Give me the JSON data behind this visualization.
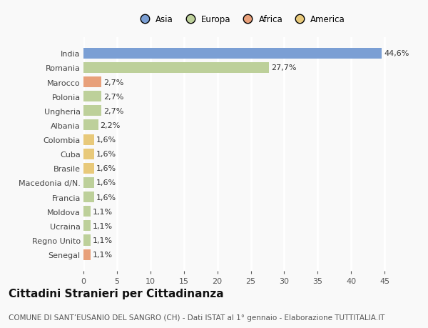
{
  "categories": [
    "India",
    "Romania",
    "Marocco",
    "Polonia",
    "Ungheria",
    "Albania",
    "Colombia",
    "Cuba",
    "Brasile",
    "Macedonia d/N.",
    "Francia",
    "Moldova",
    "Ucraina",
    "Regno Unito",
    "Senegal"
  ],
  "values": [
    44.6,
    27.7,
    2.7,
    2.7,
    2.7,
    2.2,
    1.6,
    1.6,
    1.6,
    1.6,
    1.6,
    1.1,
    1.1,
    1.1,
    1.1
  ],
  "labels": [
    "44,6%",
    "27,7%",
    "2,7%",
    "2,7%",
    "2,7%",
    "2,2%",
    "1,6%",
    "1,6%",
    "1,6%",
    "1,6%",
    "1,6%",
    "1,1%",
    "1,1%",
    "1,1%",
    "1,1%"
  ],
  "colors": [
    "#7b9fd4",
    "#bdd09a",
    "#e8a07a",
    "#bdd09a",
    "#bdd09a",
    "#bdd09a",
    "#e8c97a",
    "#e8c97a",
    "#e8c97a",
    "#bdd09a",
    "#bdd09a",
    "#bdd09a",
    "#bdd09a",
    "#bdd09a",
    "#e8a07a"
  ],
  "legend_labels": [
    "Asia",
    "Europa",
    "Africa",
    "America"
  ],
  "legend_colors": [
    "#7b9fd4",
    "#bdd09a",
    "#e8a07a",
    "#e8c97a"
  ],
  "title": "Cittadini Stranieri per Cittadinanza",
  "subtitle": "COMUNE DI SANT’EUSANIO DEL SANGRO (CH) - Dati ISTAT al 1° gennaio - Elaborazione TUTTITALIA.IT",
  "xlim": [
    0,
    47
  ],
  "background_color": "#f9f9f9",
  "grid_color": "#ffffff",
  "bar_height": 0.75,
  "title_fontsize": 11,
  "subtitle_fontsize": 7.5,
  "tick_fontsize": 8,
  "label_fontsize": 8
}
